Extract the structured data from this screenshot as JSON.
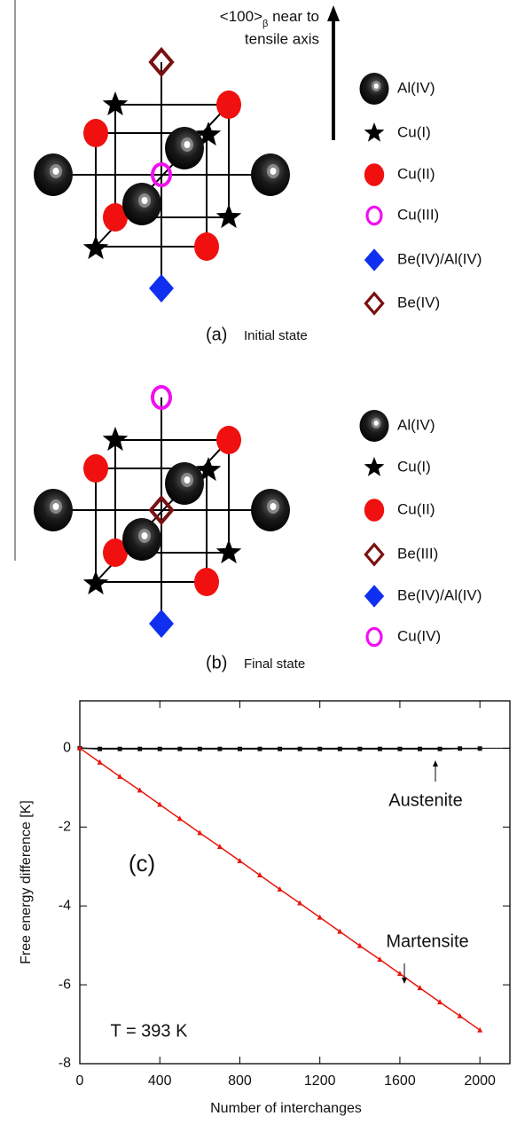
{
  "direction_label": {
    "direction": "<100>",
    "subscript": "β",
    "rest": " near to",
    "line2": "tensile axis"
  },
  "panels": [
    {
      "caption_label": "(a)",
      "caption": "Initial state",
      "legend": [
        "Al(IV)",
        "Cu(I)",
        "Cu(II)",
        "Cu(III)",
        "Be(IV)/Al(IV)",
        "Be(IV)"
      ]
    },
    {
      "caption_label": "(b)",
      "caption": "Final state",
      "legend": [
        "Al(IV)",
        "Cu(I)",
        "Cu(II)",
        "Be(III)",
        "Be(IV)/Al(IV)",
        "Cu(IV)"
      ]
    }
  ],
  "chart_data": {
    "type": "line",
    "panel_label": "(c)",
    "xlabel": "Number of interchanges",
    "ylabel": "Free energy difference [K]",
    "x": [
      0,
      100,
      200,
      300,
      400,
      500,
      600,
      700,
      800,
      900,
      1000,
      1100,
      1200,
      1300,
      1400,
      1500,
      1600,
      1700,
      1800,
      1900,
      2000
    ],
    "series": [
      {
        "name": "Austenite",
        "color": "#111111",
        "marker": "square",
        "values": [
          0,
          -0.02,
          -0.02,
          -0.02,
          -0.02,
          -0.02,
          -0.02,
          -0.02,
          -0.02,
          -0.02,
          -0.02,
          -0.02,
          -0.02,
          -0.02,
          -0.02,
          -0.02,
          -0.02,
          -0.02,
          -0.02,
          -0.01,
          -0.01
        ]
      },
      {
        "name": "Martensite",
        "color": "#e8160c",
        "marker": "triangle",
        "values": [
          0,
          -0.36,
          -0.72,
          -1.07,
          -1.43,
          -1.79,
          -2.15,
          -2.5,
          -2.86,
          -3.22,
          -3.58,
          -3.93,
          -4.29,
          -4.65,
          -5.01,
          -5.36,
          -5.72,
          -6.08,
          -6.44,
          -6.79,
          -7.15
        ]
      }
    ],
    "annotation": "T = 393 K",
    "xlim": [
      0,
      2150
    ],
    "ylim": [
      -8,
      1.2
    ],
    "xticks": [
      0,
      400,
      800,
      1200,
      1600,
      2000
    ],
    "yticks": [
      0,
      -2,
      -4,
      -6,
      -8
    ]
  }
}
